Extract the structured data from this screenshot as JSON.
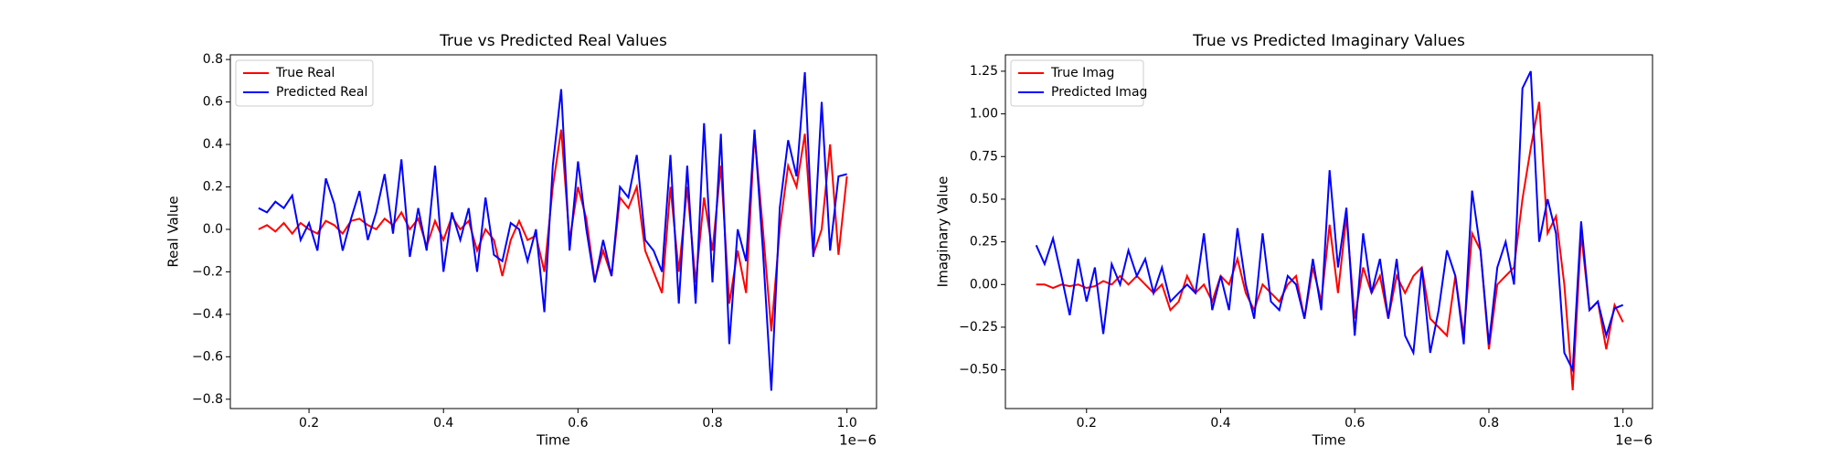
{
  "chart_data": [
    {
      "type": "line",
      "title": "True vs Predicted Real Values",
      "x_label": "Time",
      "y_label": "Real Value",
      "x_offset_label": "1e−6",
      "x": [
        0.125,
        0.1375,
        0.15,
        0.1625,
        0.175,
        0.1875,
        0.2,
        0.2125,
        0.225,
        0.2375,
        0.25,
        0.2625,
        0.275,
        0.2875,
        0.3,
        0.3125,
        0.325,
        0.3375,
        0.35,
        0.3625,
        0.375,
        0.3875,
        0.4,
        0.4125,
        0.425,
        0.4375,
        0.45,
        0.4625,
        0.475,
        0.4875,
        0.5,
        0.5125,
        0.525,
        0.5375,
        0.55,
        0.5625,
        0.575,
        0.5875,
        0.6,
        0.6125,
        0.625,
        0.6375,
        0.65,
        0.6625,
        0.675,
        0.6875,
        0.7,
        0.7125,
        0.725,
        0.7375,
        0.75,
        0.7625,
        0.775,
        0.7875,
        0.8,
        0.8125,
        0.825,
        0.8375,
        0.85,
        0.8625,
        0.875,
        0.8875,
        0.9,
        0.9125,
        0.925,
        0.9375,
        0.95,
        0.9625,
        0.975,
        0.9875,
        1.0
      ],
      "series": [
        {
          "name": "True Real",
          "color": "#ff0000",
          "values": [
            0.0,
            0.02,
            -0.01,
            0.03,
            -0.02,
            0.03,
            0.0,
            -0.02,
            0.04,
            0.02,
            -0.02,
            0.04,
            0.05,
            0.02,
            0.0,
            0.05,
            0.02,
            0.08,
            0.0,
            0.05,
            -0.08,
            0.04,
            -0.05,
            0.06,
            0.0,
            0.04,
            -0.1,
            0.0,
            -0.05,
            -0.22,
            -0.05,
            0.04,
            -0.05,
            -0.03,
            -0.2,
            0.2,
            0.47,
            -0.05,
            0.2,
            0.05,
            -0.24,
            -0.1,
            -0.22,
            0.15,
            0.1,
            0.2,
            -0.1,
            -0.2,
            -0.3,
            0.2,
            -0.2,
            0.2,
            -0.25,
            0.15,
            -0.1,
            0.3,
            -0.35,
            -0.1,
            -0.3,
            0.45,
            0.0,
            -0.48,
            0.0,
            0.3,
            0.2,
            0.45,
            -0.12,
            0.0,
            0.4,
            -0.12,
            0.25
          ]
        },
        {
          "name": "Predicted Real",
          "color": "#0000ff",
          "values": [
            0.1,
            0.08,
            0.13,
            0.1,
            0.16,
            -0.05,
            0.03,
            -0.1,
            0.24,
            0.12,
            -0.1,
            0.05,
            0.18,
            -0.05,
            0.08,
            0.26,
            -0.02,
            0.33,
            -0.13,
            0.1,
            -0.1,
            0.3,
            -0.2,
            0.08,
            -0.05,
            0.1,
            -0.2,
            0.15,
            -0.12,
            -0.15,
            0.03,
            0.0,
            -0.15,
            0.0,
            -0.39,
            0.3,
            0.66,
            -0.1,
            0.32,
            0.0,
            -0.25,
            -0.05,
            -0.22,
            0.2,
            0.15,
            0.35,
            -0.05,
            -0.1,
            -0.2,
            0.35,
            -0.35,
            0.3,
            -0.35,
            0.5,
            -0.25,
            0.45,
            -0.54,
            0.0,
            -0.15,
            0.47,
            -0.1,
            -0.76,
            0.1,
            0.42,
            0.25,
            0.74,
            -0.13,
            0.6,
            -0.1,
            0.25,
            0.26
          ]
        }
      ],
      "xlim": [
        0.083,
        1.044
      ],
      "xticks": [
        0.2,
        0.4,
        0.6,
        0.8,
        {
          "value": 1,
          "label": "1.0"
        }
      ],
      "ylim": [
        -0.844,
        0.822
      ],
      "yticks": [
        {
          "value": -0.8,
          "label": "−0.8"
        },
        {
          "value": -0.6,
          "label": "−0.6"
        },
        {
          "value": -0.4,
          "label": "−0.4"
        },
        {
          "value": -0.2,
          "label": "−0.2"
        },
        {
          "value": 0,
          "label": "0.0"
        },
        0.2,
        0.4,
        0.6,
        0.8
      ],
      "legend": "upper left"
    },
    {
      "type": "line",
      "title": "True vs Predicted Imaginary Values",
      "x_label": "Time",
      "y_label": "Imaginary Value",
      "x_offset_label": "1e−6",
      "x": [
        0.125,
        0.1375,
        0.15,
        0.1625,
        0.175,
        0.1875,
        0.2,
        0.2125,
        0.225,
        0.2375,
        0.25,
        0.2625,
        0.275,
        0.2875,
        0.3,
        0.3125,
        0.325,
        0.3375,
        0.35,
        0.3625,
        0.375,
        0.3875,
        0.4,
        0.4125,
        0.425,
        0.4375,
        0.45,
        0.4625,
        0.475,
        0.4875,
        0.5,
        0.5125,
        0.525,
        0.5375,
        0.55,
        0.5625,
        0.575,
        0.5875,
        0.6,
        0.6125,
        0.625,
        0.6375,
        0.65,
        0.6625,
        0.675,
        0.6875,
        0.7,
        0.7125,
        0.725,
        0.7375,
        0.75,
        0.7625,
        0.775,
        0.7875,
        0.8,
        0.8125,
        0.825,
        0.8375,
        0.85,
        0.8625,
        0.875,
        0.8875,
        0.9,
        0.9125,
        0.925,
        0.9375,
        0.95,
        0.9625,
        0.975,
        0.9875,
        1.0
      ],
      "series": [
        {
          "name": "True Imag",
          "color": "#ff0000",
          "values": [
            0.0,
            0.0,
            -0.02,
            0.0,
            -0.01,
            0.0,
            -0.02,
            -0.01,
            0.02,
            0.0,
            0.05,
            0.0,
            0.05,
            0.0,
            -0.05,
            0.0,
            -0.15,
            -0.1,
            0.05,
            -0.05,
            0.0,
            -0.1,
            0.05,
            0.0,
            0.15,
            -0.05,
            -0.15,
            0.0,
            -0.05,
            -0.1,
            0.0,
            0.05,
            -0.2,
            0.1,
            -0.1,
            0.35,
            -0.05,
            0.4,
            -0.2,
            0.1,
            -0.05,
            0.05,
            -0.2,
            0.05,
            -0.05,
            0.05,
            0.1,
            -0.2,
            -0.25,
            -0.3,
            0.05,
            -0.3,
            0.3,
            0.2,
            -0.38,
            0.0,
            0.05,
            0.1,
            0.5,
            0.8,
            1.07,
            0.3,
            0.4,
            0.0,
            -0.62,
            0.3,
            -0.15,
            -0.1,
            -0.38,
            -0.12,
            -0.22
          ]
        },
        {
          "name": "Predicted Imag",
          "color": "#0000ff",
          "values": [
            0.23,
            0.12,
            0.27,
            0.05,
            -0.18,
            0.15,
            -0.1,
            0.1,
            -0.29,
            0.12,
            0.0,
            0.2,
            0.05,
            0.15,
            -0.05,
            0.1,
            -0.1,
            -0.05,
            0.0,
            -0.05,
            0.3,
            -0.15,
            0.05,
            -0.15,
            0.33,
            0.0,
            -0.2,
            0.3,
            -0.1,
            -0.15,
            0.05,
            0.0,
            -0.2,
            0.15,
            -0.15,
            0.67,
            0.1,
            0.45,
            -0.3,
            0.3,
            -0.05,
            0.15,
            -0.2,
            0.15,
            -0.3,
            -0.4,
            0.1,
            -0.4,
            -0.15,
            0.2,
            0.05,
            -0.35,
            0.55,
            0.2,
            -0.35,
            0.1,
            0.25,
            0.0,
            1.15,
            1.25,
            0.25,
            0.5,
            0.3,
            -0.4,
            -0.5,
            0.37,
            -0.15,
            -0.1,
            -0.3,
            -0.14,
            -0.12
          ]
        }
      ],
      "xlim": [
        0.079,
        1.044
      ],
      "xticks": [
        0.2,
        0.4,
        0.6,
        0.8,
        {
          "value": 1,
          "label": "1.0"
        }
      ],
      "ylim": [
        -0.727,
        1.346
      ],
      "yticks": [
        {
          "value": -0.5,
          "label": "−0.50"
        },
        {
          "value": -0.25,
          "label": "−0.25"
        },
        {
          "value": 0,
          "label": "0.00"
        },
        0.25,
        {
          "value": 0.5,
          "label": "0.50"
        },
        0.75,
        {
          "value": 1,
          "label": "1.00"
        },
        1.25
      ],
      "legend": "upper left"
    }
  ]
}
